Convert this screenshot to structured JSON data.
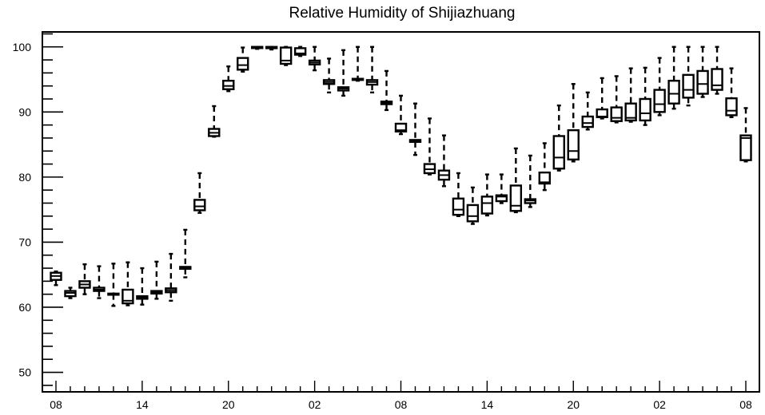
{
  "chart_data": {
    "type": "box",
    "title": "Relative Humidity of Shijiazhuang",
    "xlabel": "",
    "ylabel": "",
    "ylim": [
      47,
      102.3
    ],
    "xlim": [
      0,
      48
    ],
    "grid": false,
    "y_ticks": [
      50,
      60,
      70,
      80,
      90,
      100
    ],
    "x_tick_labels": [
      {
        "x": 0,
        "label": "08"
      },
      {
        "x": 6,
        "label": "14"
      },
      {
        "x": 12,
        "label": "20"
      },
      {
        "x": 18,
        "label": "02"
      },
      {
        "x": 24,
        "label": "08"
      },
      {
        "x": 30,
        "label": "14"
      },
      {
        "x": 36,
        "label": "20"
      },
      {
        "x": 42,
        "label": "02"
      },
      {
        "x": 48,
        "label": "08"
      }
    ],
    "boxes": [
      {
        "x": 0,
        "min": 63.4,
        "q1": 64.2,
        "median": 64.8,
        "q3": 65.3,
        "max": 65.5
      },
      {
        "x": 1,
        "min": 61.4,
        "q1": 61.7,
        "median": 62.2,
        "q3": 62.5,
        "max": 63.0
      },
      {
        "x": 2,
        "min": 62.0,
        "q1": 63.0,
        "median": 63.5,
        "q3": 64.0,
        "max": 66.6
      },
      {
        "x": 3,
        "min": 61.4,
        "q1": 62.5,
        "median": 62.7,
        "q3": 63.0,
        "max": 66.3
      },
      {
        "x": 4,
        "min": 60.2,
        "q1": 62.0,
        "median": 62.0,
        "q3": 62.1,
        "max": 66.7
      },
      {
        "x": 5,
        "min": 60.3,
        "q1": 60.6,
        "median": 61.0,
        "q3": 62.7,
        "max": 66.9
      },
      {
        "x": 6,
        "min": 60.4,
        "q1": 61.3,
        "median": 61.5,
        "q3": 61.7,
        "max": 66.0
      },
      {
        "x": 7,
        "min": 61.3,
        "q1": 62.1,
        "median": 62.3,
        "q3": 62.5,
        "max": 67.0
      },
      {
        "x": 8,
        "min": 61.0,
        "q1": 62.3,
        "median": 62.6,
        "q3": 62.9,
        "max": 68.2
      },
      {
        "x": 9,
        "min": 64.6,
        "q1": 65.9,
        "median": 66.0,
        "q3": 66.2,
        "max": 71.9
      },
      {
        "x": 10,
        "min": 74.5,
        "q1": 74.9,
        "median": 75.5,
        "q3": 76.5,
        "max": 80.6
      },
      {
        "x": 11,
        "min": 86.2,
        "q1": 86.3,
        "median": 86.8,
        "q3": 87.4,
        "max": 90.9
      },
      {
        "x": 12,
        "min": 93.2,
        "q1": 93.5,
        "median": 94.0,
        "q3": 94.8,
        "max": 97.0
      },
      {
        "x": 13,
        "min": 96.2,
        "q1": 96.5,
        "median": 97.2,
        "q3": 98.3,
        "max": 99.9
      },
      {
        "x": 14,
        "min": 99.7,
        "q1": 99.9,
        "median": 100.0,
        "q3": 100.0,
        "max": 100.0
      },
      {
        "x": 15,
        "min": 99.6,
        "q1": 99.8,
        "median": 99.9,
        "q3": 100.0,
        "max": 100.0
      },
      {
        "x": 16,
        "min": 97.2,
        "q1": 97.4,
        "median": 97.9,
        "q3": 99.9,
        "max": 100.0
      },
      {
        "x": 17,
        "min": 98.6,
        "q1": 98.8,
        "median": 99.0,
        "q3": 99.8,
        "max": 100.0
      },
      {
        "x": 18,
        "min": 96.4,
        "q1": 97.3,
        "median": 97.6,
        "q3": 97.9,
        "max": 100.0
      },
      {
        "x": 19,
        "min": 93.0,
        "q1": 94.3,
        "median": 94.6,
        "q3": 94.9,
        "max": 98.2
      },
      {
        "x": 20,
        "min": 92.5,
        "q1": 93.3,
        "median": 93.6,
        "q3": 93.8,
        "max": 99.5
      },
      {
        "x": 21,
        "min": 94.8,
        "q1": 95.0,
        "median": 95.0,
        "q3": 95.1,
        "max": 100.0
      },
      {
        "x": 22,
        "min": 93.0,
        "q1": 94.2,
        "median": 94.6,
        "q3": 94.9,
        "max": 100.0
      },
      {
        "x": 23,
        "min": 90.3,
        "q1": 91.2,
        "median": 91.4,
        "q3": 91.6,
        "max": 96.3
      },
      {
        "x": 24,
        "min": 86.6,
        "q1": 87.0,
        "median": 87.2,
        "q3": 88.2,
        "max": 92.5
      },
      {
        "x": 25,
        "min": 83.4,
        "q1": 85.4,
        "median": 85.6,
        "q3": 85.7,
        "max": 91.3
      },
      {
        "x": 26,
        "min": 80.4,
        "q1": 80.6,
        "median": 81.2,
        "q3": 82.0,
        "max": 89.0
      },
      {
        "x": 27,
        "min": 78.6,
        "q1": 79.6,
        "median": 80.3,
        "q3": 81.0,
        "max": 86.4
      },
      {
        "x": 28,
        "min": 74.0,
        "q1": 74.2,
        "median": 75.0,
        "q3": 76.7,
        "max": 80.6
      },
      {
        "x": 29,
        "min": 72.8,
        "q1": 73.2,
        "median": 74.0,
        "q3": 75.7,
        "max": 78.4
      },
      {
        "x": 30,
        "min": 74.1,
        "q1": 74.4,
        "median": 76.0,
        "q3": 77.0,
        "max": 80.4
      },
      {
        "x": 31,
        "min": 76.0,
        "q1": 76.3,
        "median": 77.0,
        "q3": 77.2,
        "max": 80.4
      },
      {
        "x": 32,
        "min": 74.6,
        "q1": 74.8,
        "median": 75.6,
        "q3": 78.7,
        "max": 84.4
      },
      {
        "x": 33,
        "min": 75.4,
        "q1": 76.0,
        "median": 76.4,
        "q3": 76.6,
        "max": 83.3
      },
      {
        "x": 34,
        "min": 78.0,
        "q1": 79.0,
        "median": 79.2,
        "q3": 80.7,
        "max": 85.2
      },
      {
        "x": 35,
        "min": 81.0,
        "q1": 81.3,
        "median": 83.0,
        "q3": 86.3,
        "max": 91.0
      },
      {
        "x": 36,
        "min": 82.4,
        "q1": 82.7,
        "median": 84.0,
        "q3": 87.2,
        "max": 94.3
      },
      {
        "x": 37,
        "min": 87.3,
        "q1": 87.7,
        "median": 88.3,
        "q3": 89.3,
        "max": 93.0
      },
      {
        "x": 38,
        "min": 89.0,
        "q1": 89.2,
        "median": 89.3,
        "q3": 90.4,
        "max": 95.2
      },
      {
        "x": 39,
        "min": 88.4,
        "q1": 88.6,
        "median": 89.1,
        "q3": 90.7,
        "max": 95.5
      },
      {
        "x": 40,
        "min": 88.5,
        "q1": 88.7,
        "median": 89.1,
        "q3": 91.3,
        "max": 96.7
      },
      {
        "x": 41,
        "min": 88.0,
        "q1": 88.7,
        "median": 89.8,
        "q3": 92.0,
        "max": 96.8
      },
      {
        "x": 42,
        "min": 89.5,
        "q1": 90.0,
        "median": 91.2,
        "q3": 93.4,
        "max": 98.3
      },
      {
        "x": 43,
        "min": 90.5,
        "q1": 91.3,
        "median": 92.8,
        "q3": 94.8,
        "max": 100.0
      },
      {
        "x": 44,
        "min": 91.0,
        "q1": 92.2,
        "median": 93.4,
        "q3": 95.7,
        "max": 100.0
      },
      {
        "x": 45,
        "min": 92.3,
        "q1": 92.8,
        "median": 94.3,
        "q3": 96.3,
        "max": 100.0
      },
      {
        "x": 46,
        "min": 92.8,
        "q1": 93.4,
        "median": 94.1,
        "q3": 96.6,
        "max": 100.0
      },
      {
        "x": 47,
        "min": 89.2,
        "q1": 89.5,
        "median": 90.2,
        "q3": 92.1,
        "max": 96.7
      },
      {
        "x": 48,
        "min": 82.4,
        "q1": 82.6,
        "median": 86.0,
        "q3": 86.4,
        "max": 90.6
      }
    ]
  }
}
